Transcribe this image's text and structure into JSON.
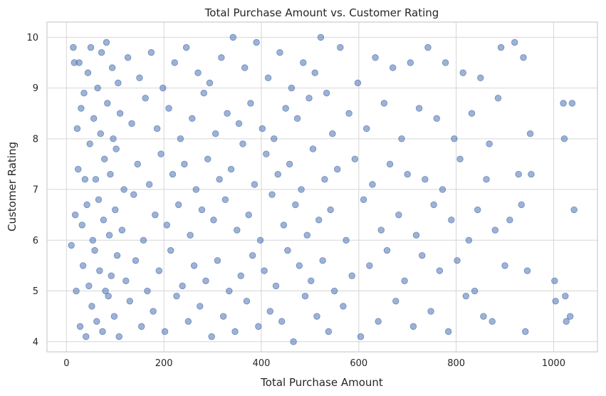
{
  "chart_data": {
    "type": "scatter",
    "title": "Total Purchase Amount vs. Customer Rating",
    "xlabel": "Total Purchase Amount",
    "ylabel": "Customer Rating",
    "xlim": [
      -40,
      1090
    ],
    "ylim": [
      3.8,
      10.3
    ],
    "xticks": [
      0,
      200,
      400,
      600,
      800,
      1000
    ],
    "yticks": [
      4,
      5,
      6,
      7,
      8,
      9,
      10
    ],
    "grid": true,
    "color": "#4c72b0",
    "series": [
      {
        "points": [
          [
            10,
            5.9
          ],
          [
            14,
            9.8
          ],
          [
            16,
            9.5
          ],
          [
            18,
            6.5
          ],
          [
            20,
            5.0
          ],
          [
            22,
            8.2
          ],
          [
            24,
            7.4
          ],
          [
            26,
            9.5
          ],
          [
            28,
            4.3
          ],
          [
            30,
            8.6
          ],
          [
            32,
            6.3
          ],
          [
            34,
            5.5
          ],
          [
            36,
            8.9
          ],
          [
            38,
            7.2
          ],
          [
            40,
            4.1
          ],
          [
            42,
            6.7
          ],
          [
            44,
            9.3
          ],
          [
            46,
            5.1
          ],
          [
            48,
            7.9
          ],
          [
            50,
            9.8
          ],
          [
            52,
            4.7
          ],
          [
            54,
            6.0
          ],
          [
            56,
            8.4
          ],
          [
            58,
            5.8
          ],
          [
            60,
            7.2
          ],
          [
            62,
            4.4
          ],
          [
            64,
            9.0
          ],
          [
            66,
            6.8
          ],
          [
            68,
            5.4
          ],
          [
            70,
            8.1
          ],
          [
            72,
            9.7
          ],
          [
            74,
            4.2
          ],
          [
            76,
            6.4
          ],
          [
            78,
            7.6
          ],
          [
            80,
            5.0
          ],
          [
            82,
            9.9
          ],
          [
            84,
            8.7
          ],
          [
            86,
            4.9
          ],
          [
            88,
            6.1
          ],
          [
            90,
            7.3
          ],
          [
            92,
            5.3
          ],
          [
            94,
            9.4
          ],
          [
            96,
            8.0
          ],
          [
            98,
            4.5
          ],
          [
            100,
            6.6
          ],
          [
            102,
            7.8
          ],
          [
            104,
            5.7
          ],
          [
            106,
            9.1
          ],
          [
            108,
            4.1
          ],
          [
            110,
            8.5
          ],
          [
            114,
            6.2
          ],
          [
            118,
            7.0
          ],
          [
            122,
            5.2
          ],
          [
            126,
            9.6
          ],
          [
            130,
            4.8
          ],
          [
            134,
            8.3
          ],
          [
            138,
            6.9
          ],
          [
            142,
            5.6
          ],
          [
            146,
            7.5
          ],
          [
            150,
            9.2
          ],
          [
            154,
            4.3
          ],
          [
            158,
            6.0
          ],
          [
            162,
            8.8
          ],
          [
            166,
            5.0
          ],
          [
            170,
            7.1
          ],
          [
            174,
            9.7
          ],
          [
            178,
            4.6
          ],
          [
            182,
            6.5
          ],
          [
            186,
            8.2
          ],
          [
            190,
            5.4
          ],
          [
            194,
            7.7
          ],
          [
            198,
            9.0
          ],
          [
            202,
            4.2
          ],
          [
            206,
            6.3
          ],
          [
            210,
            8.6
          ],
          [
            214,
            5.8
          ],
          [
            218,
            7.3
          ],
          [
            222,
            9.5
          ],
          [
            226,
            4.9
          ],
          [
            230,
            6.7
          ],
          [
            234,
            8.0
          ],
          [
            238,
            5.1
          ],
          [
            242,
            7.5
          ],
          [
            246,
            9.8
          ],
          [
            250,
            4.4
          ],
          [
            254,
            6.1
          ],
          [
            258,
            8.4
          ],
          [
            262,
            5.5
          ],
          [
            266,
            7.0
          ],
          [
            270,
            9.3
          ],
          [
            274,
            4.7
          ],
          [
            278,
            6.6
          ],
          [
            282,
            8.9
          ],
          [
            286,
            5.2
          ],
          [
            290,
            7.6
          ],
          [
            294,
            9.1
          ],
          [
            298,
            4.1
          ],
          [
            302,
            6.4
          ],
          [
            306,
            8.1
          ],
          [
            310,
            5.6
          ],
          [
            314,
            7.2
          ],
          [
            318,
            9.6
          ],
          [
            322,
            4.5
          ],
          [
            326,
            6.8
          ],
          [
            330,
            8.5
          ],
          [
            334,
            5.0
          ],
          [
            338,
            7.4
          ],
          [
            342,
            10.0
          ],
          [
            346,
            4.2
          ],
          [
            350,
            6.2
          ],
          [
            354,
            8.3
          ],
          [
            358,
            5.3
          ],
          [
            362,
            7.9
          ],
          [
            366,
            9.4
          ],
          [
            370,
            4.8
          ],
          [
            374,
            6.5
          ],
          [
            378,
            8.7
          ],
          [
            382,
            5.7
          ],
          [
            386,
            7.1
          ],
          [
            390,
            9.9
          ],
          [
            394,
            4.3
          ],
          [
            398,
            6.0
          ],
          [
            402,
            8.2
          ],
          [
            406,
            5.4
          ],
          [
            410,
            7.7
          ],
          [
            414,
            9.2
          ],
          [
            418,
            4.6
          ],
          [
            422,
            6.9
          ],
          [
            426,
            8.0
          ],
          [
            430,
            5.1
          ],
          [
            434,
            7.3
          ],
          [
            438,
            9.7
          ],
          [
            442,
            4.4
          ],
          [
            446,
            6.3
          ],
          [
            450,
            8.6
          ],
          [
            454,
            5.8
          ],
          [
            458,
            7.5
          ],
          [
            462,
            9.0
          ],
          [
            466,
            4.0
          ],
          [
            470,
            6.7
          ],
          [
            474,
            8.4
          ],
          [
            478,
            5.5
          ],
          [
            482,
            7.0
          ],
          [
            486,
            9.5
          ],
          [
            490,
            4.9
          ],
          [
            494,
            6.1
          ],
          [
            498,
            8.8
          ],
          [
            502,
            5.2
          ],
          [
            506,
            7.8
          ],
          [
            510,
            9.3
          ],
          [
            514,
            4.5
          ],
          [
            518,
            6.4
          ],
          [
            522,
            10.0
          ],
          [
            526,
            5.6
          ],
          [
            530,
            7.2
          ],
          [
            534,
            8.9
          ],
          [
            538,
            4.2
          ],
          [
            542,
            6.6
          ],
          [
            546,
            8.1
          ],
          [
            550,
            5.0
          ],
          [
            556,
            7.4
          ],
          [
            562,
            9.8
          ],
          [
            568,
            4.7
          ],
          [
            574,
            6.0
          ],
          [
            580,
            8.5
          ],
          [
            586,
            5.3
          ],
          [
            592,
            7.6
          ],
          [
            598,
            9.1
          ],
          [
            604,
            4.1
          ],
          [
            610,
            6.8
          ],
          [
            616,
            8.2
          ],
          [
            622,
            5.5
          ],
          [
            628,
            7.1
          ],
          [
            634,
            9.6
          ],
          [
            640,
            4.4
          ],
          [
            646,
            6.2
          ],
          [
            652,
            8.7
          ],
          [
            658,
            5.8
          ],
          [
            664,
            7.5
          ],
          [
            670,
            9.4
          ],
          [
            676,
            4.8
          ],
          [
            682,
            6.5
          ],
          [
            688,
            8.0
          ],
          [
            694,
            5.2
          ],
          [
            700,
            7.3
          ],
          [
            706,
            9.5
          ],
          [
            712,
            4.3
          ],
          [
            718,
            6.1
          ],
          [
            724,
            8.6
          ],
          [
            730,
            5.7
          ],
          [
            736,
            7.2
          ],
          [
            742,
            9.8
          ],
          [
            748,
            4.6
          ],
          [
            754,
            6.7
          ],
          [
            760,
            8.4
          ],
          [
            766,
            5.4
          ],
          [
            772,
            7.0
          ],
          [
            778,
            9.5
          ],
          [
            784,
            4.2
          ],
          [
            790,
            6.4
          ],
          [
            796,
            8.0
          ],
          [
            802,
            5.6
          ],
          [
            808,
            7.6
          ],
          [
            814,
            9.3
          ],
          [
            820,
            4.9
          ],
          [
            826,
            6.0
          ],
          [
            832,
            8.5
          ],
          [
            838,
            5.0
          ],
          [
            844,
            6.6
          ],
          [
            850,
            9.2
          ],
          [
            856,
            4.5
          ],
          [
            862,
            7.2
          ],
          [
            868,
            7.9
          ],
          [
            874,
            4.4
          ],
          [
            880,
            6.2
          ],
          [
            886,
            8.8
          ],
          [
            892,
            9.8
          ],
          [
            900,
            5.5
          ],
          [
            910,
            6.4
          ],
          [
            920,
            9.9
          ],
          [
            928,
            7.3
          ],
          [
            934,
            6.7
          ],
          [
            938,
            9.6
          ],
          [
            942,
            4.2
          ],
          [
            946,
            5.4
          ],
          [
            952,
            8.1
          ],
          [
            954,
            7.3
          ],
          [
            1002,
            5.2
          ],
          [
            1004,
            4.8
          ],
          [
            1020,
            8.7
          ],
          [
            1022,
            8.0
          ],
          [
            1024,
            4.9
          ],
          [
            1026,
            4.4
          ],
          [
            1034,
            4.5
          ],
          [
            1038,
            8.7
          ],
          [
            1042,
            6.6
          ]
        ]
      }
    ]
  }
}
